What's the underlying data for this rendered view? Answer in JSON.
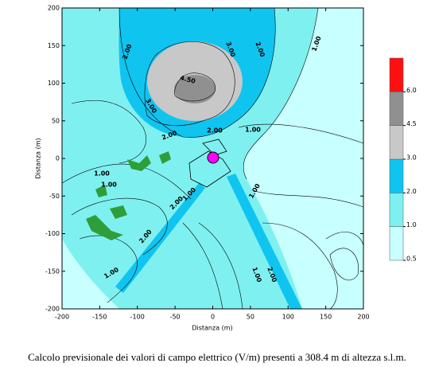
{
  "chart_data": {
    "type": "contour",
    "x_label": "Distanza (m)",
    "y_label": "Distanza (m)",
    "xlim": [
      -200,
      200
    ],
    "ylim": [
      -200,
      200
    ],
    "xticks": [
      -200,
      -150,
      -100,
      -50,
      0,
      50,
      100,
      150,
      200
    ],
    "yticks": [
      -200,
      -150,
      -100,
      -50,
      0,
      50,
      100,
      150,
      200
    ],
    "contour_labels": [
      "2.00",
      "3.00",
      "2.00",
      "1.00",
      "4.50",
      "3.00",
      "2.00",
      "2.00",
      "1.00",
      "1.00",
      "1.00",
      "1.00",
      "2.00",
      "1.00",
      "2.00",
      "1.00",
      "1.00",
      "2.00"
    ],
    "colorbar": {
      "ticks": [
        0.5,
        {
          "value": 1,
          "label": "1.0"
        },
        {
          "value": 2,
          "label": "2.0"
        },
        {
          "value": 3,
          "label": "3.0"
        },
        4.5,
        {
          "value": 6,
          "label": "6.0"
        }
      ],
      "colors": [
        "#c8ffff",
        "#7ff0f0",
        "#10c4f0",
        "#c8c8c8",
        "#909090",
        "#ff1010"
      ]
    }
  },
  "caption": "Calcolo previsionale dei valori di campo elettrico (V/m) presenti a 308.4 m di altezza s.l.m."
}
